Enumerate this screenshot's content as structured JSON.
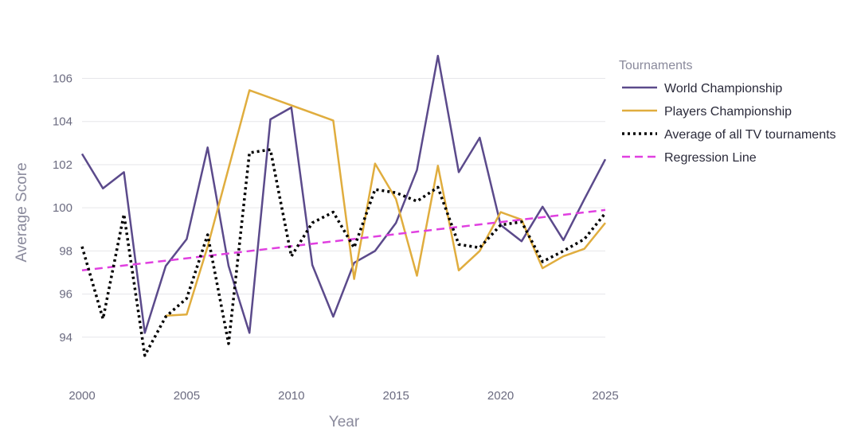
{
  "chart_data": {
    "type": "line",
    "title": "",
    "xlabel": "Year",
    "ylabel": "Average Score",
    "xlim": [
      2000,
      2025
    ],
    "ylim": [
      92,
      107.2
    ],
    "xticks": [
      2000,
      2005,
      2010,
      2015,
      2020,
      2025
    ],
    "yticks": [
      94,
      96,
      98,
      100,
      102,
      104,
      106
    ],
    "grid": "horizontal",
    "legend": {
      "title": "Tournaments",
      "placement": "right"
    },
    "series": [
      {
        "name": "World Championship",
        "color": "#5b4a8b",
        "dash": "solid",
        "points": [
          [
            2000,
            102.5
          ],
          [
            2001,
            100.9
          ],
          [
            2002,
            101.65
          ],
          [
            2003,
            94.2
          ],
          [
            2004,
            97.3
          ],
          [
            2005,
            98.55
          ],
          [
            2006,
            102.8
          ],
          [
            2007,
            97.3
          ],
          [
            2008,
            94.2
          ],
          [
            2009,
            104.1
          ],
          [
            2010,
            104.65
          ],
          [
            2011,
            97.35
          ],
          [
            2012,
            94.95
          ],
          [
            2013,
            97.45
          ],
          [
            2014,
            98.0
          ],
          [
            2015,
            99.3
          ],
          [
            2016,
            101.75
          ],
          [
            2017,
            107.05
          ],
          [
            2018,
            101.65
          ],
          [
            2019,
            103.25
          ],
          [
            2020,
            99.2
          ],
          [
            2021,
            98.45
          ],
          [
            2022,
            100.05
          ],
          [
            2023,
            98.5
          ],
          [
            2024,
            100.4
          ],
          [
            2025,
            102.25
          ]
        ]
      },
      {
        "name": "Players Championship",
        "color": "#e0ad3e",
        "dash": "solid",
        "points": [
          [
            2004,
            95.0
          ],
          [
            2005,
            95.05
          ],
          [
            2006,
            98.2
          ],
          [
            2008,
            105.45
          ],
          [
            2012,
            104.05
          ],
          [
            2013,
            96.7
          ],
          [
            2014,
            102.05
          ],
          [
            2015,
            100.4
          ],
          [
            2016,
            96.85
          ],
          [
            2017,
            101.95
          ],
          [
            2018,
            97.1
          ],
          [
            2019,
            98.0
          ],
          [
            2020,
            99.8
          ],
          [
            2021,
            99.45
          ],
          [
            2022,
            97.2
          ],
          [
            2023,
            97.75
          ],
          [
            2024,
            98.1
          ],
          [
            2025,
            99.3
          ]
        ]
      },
      {
        "name": "Average of all TV tournaments",
        "color": "#000000",
        "dash": "dot",
        "points": [
          [
            2000,
            98.2
          ],
          [
            2001,
            94.85
          ],
          [
            2002,
            99.7
          ],
          [
            2003,
            93.15
          ],
          [
            2004,
            94.95
          ],
          [
            2005,
            95.8
          ],
          [
            2006,
            98.75
          ],
          [
            2007,
            93.7
          ],
          [
            2008,
            102.55
          ],
          [
            2009,
            102.7
          ],
          [
            2010,
            97.75
          ],
          [
            2011,
            99.3
          ],
          [
            2012,
            99.8
          ],
          [
            2013,
            98.15
          ],
          [
            2014,
            100.85
          ],
          [
            2015,
            100.7
          ],
          [
            2016,
            100.3
          ],
          [
            2017,
            100.95
          ],
          [
            2018,
            98.3
          ],
          [
            2019,
            98.15
          ],
          [
            2020,
            99.2
          ],
          [
            2021,
            99.35
          ],
          [
            2022,
            97.5
          ],
          [
            2023,
            98.0
          ],
          [
            2024,
            98.55
          ],
          [
            2025,
            99.75
          ]
        ]
      },
      {
        "name": "Regression Line",
        "color": "#e040e0",
        "dash": "dash",
        "points": [
          [
            2000,
            97.1
          ],
          [
            2025,
            99.9
          ]
        ]
      }
    ]
  }
}
